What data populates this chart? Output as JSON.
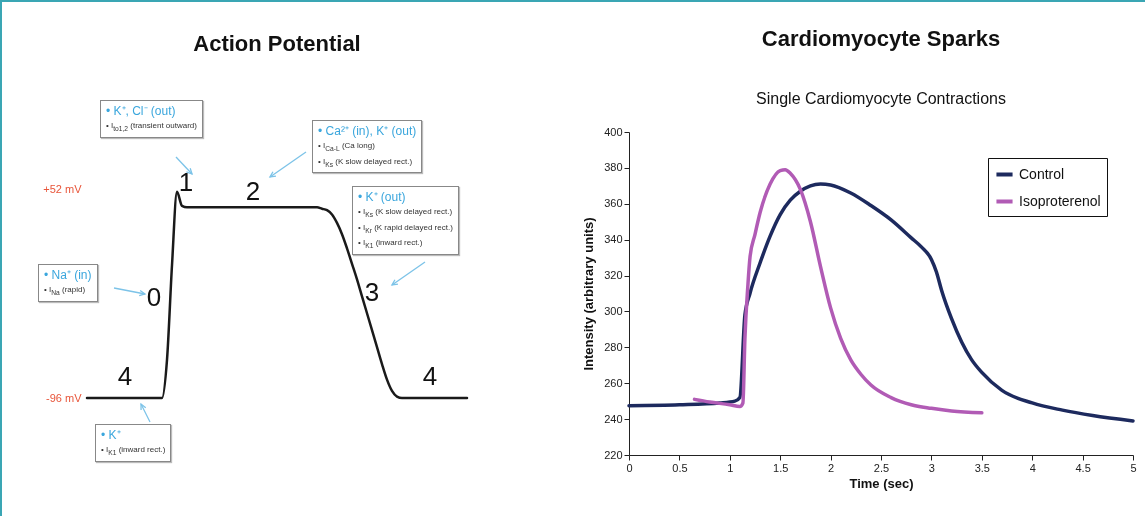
{
  "chart_data": [
    {
      "type": "line",
      "title": "Action Potential",
      "tick_labels": "y",
      "categories": [
        null,
        null,
        null,
        null,
        null,
        null,
        null,
        null,
        null,
        null,
        null,
        null,
        null,
        null,
        null,
        null,
        null,
        null,
        null,
        null,
        null,
        null,
        null,
        null,
        null,
        null,
        null,
        null,
        null,
        null,
        null,
        null,
        null,
        null,
        null,
        null,
        null,
        null,
        null,
        null,
        null,
        null,
        null,
        null,
        null,
        null,
        null,
        null,
        null,
        null,
        null,
        null,
        null,
        null,
        null,
        null,
        null,
        null,
        null,
        null,
        null,
        null,
        null,
        null,
        null,
        null,
        null,
        null,
        null,
        null,
        null,
        null,
        null,
        null,
        null,
        null,
        null
      ],
      "series": [
        {
          "color": "#1a1a1a",
          "values": [
            -96,
            -96,
            -96,
            -96,
            -96,
            -96,
            -96,
            -96,
            -96,
            -96,
            -96,
            -96,
            -96,
            -96,
            -96,
            -96,
            -69,
            -2,
            50,
            40,
            39,
            39,
            39,
            39,
            39,
            39,
            39,
            39,
            39,
            39,
            39,
            39,
            39,
            39,
            39,
            39,
            39,
            39,
            39,
            39,
            39,
            39,
            39,
            39,
            39,
            39,
            39,
            38,
            37,
            34,
            28,
            20,
            10,
            -1,
            -12,
            -24,
            -36,
            -48,
            -60,
            -72,
            -83,
            -91,
            -95,
            -96,
            -96,
            -96,
            -96,
            -96,
            -96,
            -96,
            -96,
            -96,
            -96,
            -96,
            -96,
            -96,
            -96
          ]
        }
      ],
      "ylim": [
        -96,
        52
      ],
      "yticks": [
        {
          "value": 52,
          "label": "+52 mV"
        },
        {
          "value": -96,
          "label": "-96 mV"
        }
      ],
      "annotations": [
        "• K⁺, Cl⁻ (out)",
        "• I$_{to1,2}$ (transient outward)",
        "• Ca²⁺ (in), K⁺ (out)",
        "• I$_{Ca-L}$ (Ca long)",
        "• I$_{Ks}$ (K slow delayed rect.)",
        "• K⁺ (out)",
        "• I$_{Ks}$ (K slow delayed rect.)",
        "• I$_{Kr}$ (K rapid delayed rect.)",
        "• I$_{K1}$ (inward rect.)",
        "• Na⁺ (in)",
        "• I$_{Na}$ (rapid)",
        "• K⁺",
        "• I$_{K1}$ (inward rect.)",
        "1",
        "2",
        "0",
        "3",
        "4",
        "4"
      ]
    },
    {
      "type": "line",
      "title": "Cardiomyocyte Sparks",
      "subtitle": "Single Cardiomyocyte Contractions",
      "xlabel": "Time (sec)",
      "ylabel": "Intensity (arbitrary units)",
      "legend": "top right",
      "grid": false,
      "xlim": [
        0,
        5
      ],
      "xticks": [
        0,
        0.5,
        1,
        1.5,
        2,
        2.5,
        3,
        3.5,
        4,
        4.5,
        5
      ],
      "ylim": [
        220,
        400
      ],
      "yticks": [
        220,
        240,
        260,
        280,
        300,
        320,
        340,
        360,
        380,
        400
      ],
      "series": [
        {
          "name": "Control",
          "color": "#1d2a5e",
          "x": [
            0,
            0.5,
            0.9,
            1.05,
            1.1,
            1.15,
            1.2,
            1.3,
            1.4,
            1.5,
            1.6,
            1.7,
            1.8,
            1.9,
            2.0,
            2.2,
            2.4,
            2.6,
            2.8,
            2.9,
            3.0,
            3.05,
            3.1,
            3.2,
            3.3,
            3.4,
            3.5,
            3.7,
            4.0,
            4.3,
            4.6,
            5.0
          ],
          "values": [
            247.5,
            248,
            249,
            250,
            252,
            298,
            310,
            327,
            342,
            354,
            362,
            367,
            370,
            371,
            370.5,
            366,
            359,
            351,
            341,
            336,
            329,
            322,
            312,
            296,
            283,
            273,
            266,
            256,
            249,
            245,
            242,
            239
          ]
        },
        {
          "name": "Isoproterenol",
          "color": "#b15bb5",
          "x": [
            0.65,
            0.8,
            1.0,
            1.1,
            1.13,
            1.15,
            1.18,
            1.2,
            1.25,
            1.3,
            1.4,
            1.5,
            1.55,
            1.6,
            1.7,
            1.8,
            1.9,
            2.0,
            2.1,
            2.2,
            2.3,
            2.4,
            2.6,
            2.8,
            3.0,
            3.2,
            3.5
          ],
          "values": [
            251,
            249.5,
            248,
            247,
            249,
            285,
            315,
            330,
            343,
            355,
            371,
            378.5,
            379,
            377,
            368,
            350,
            325,
            302,
            285,
            273,
            265,
            259,
            252,
            248,
            246,
            244.5,
            243.5
          ]
        }
      ]
    }
  ]
}
